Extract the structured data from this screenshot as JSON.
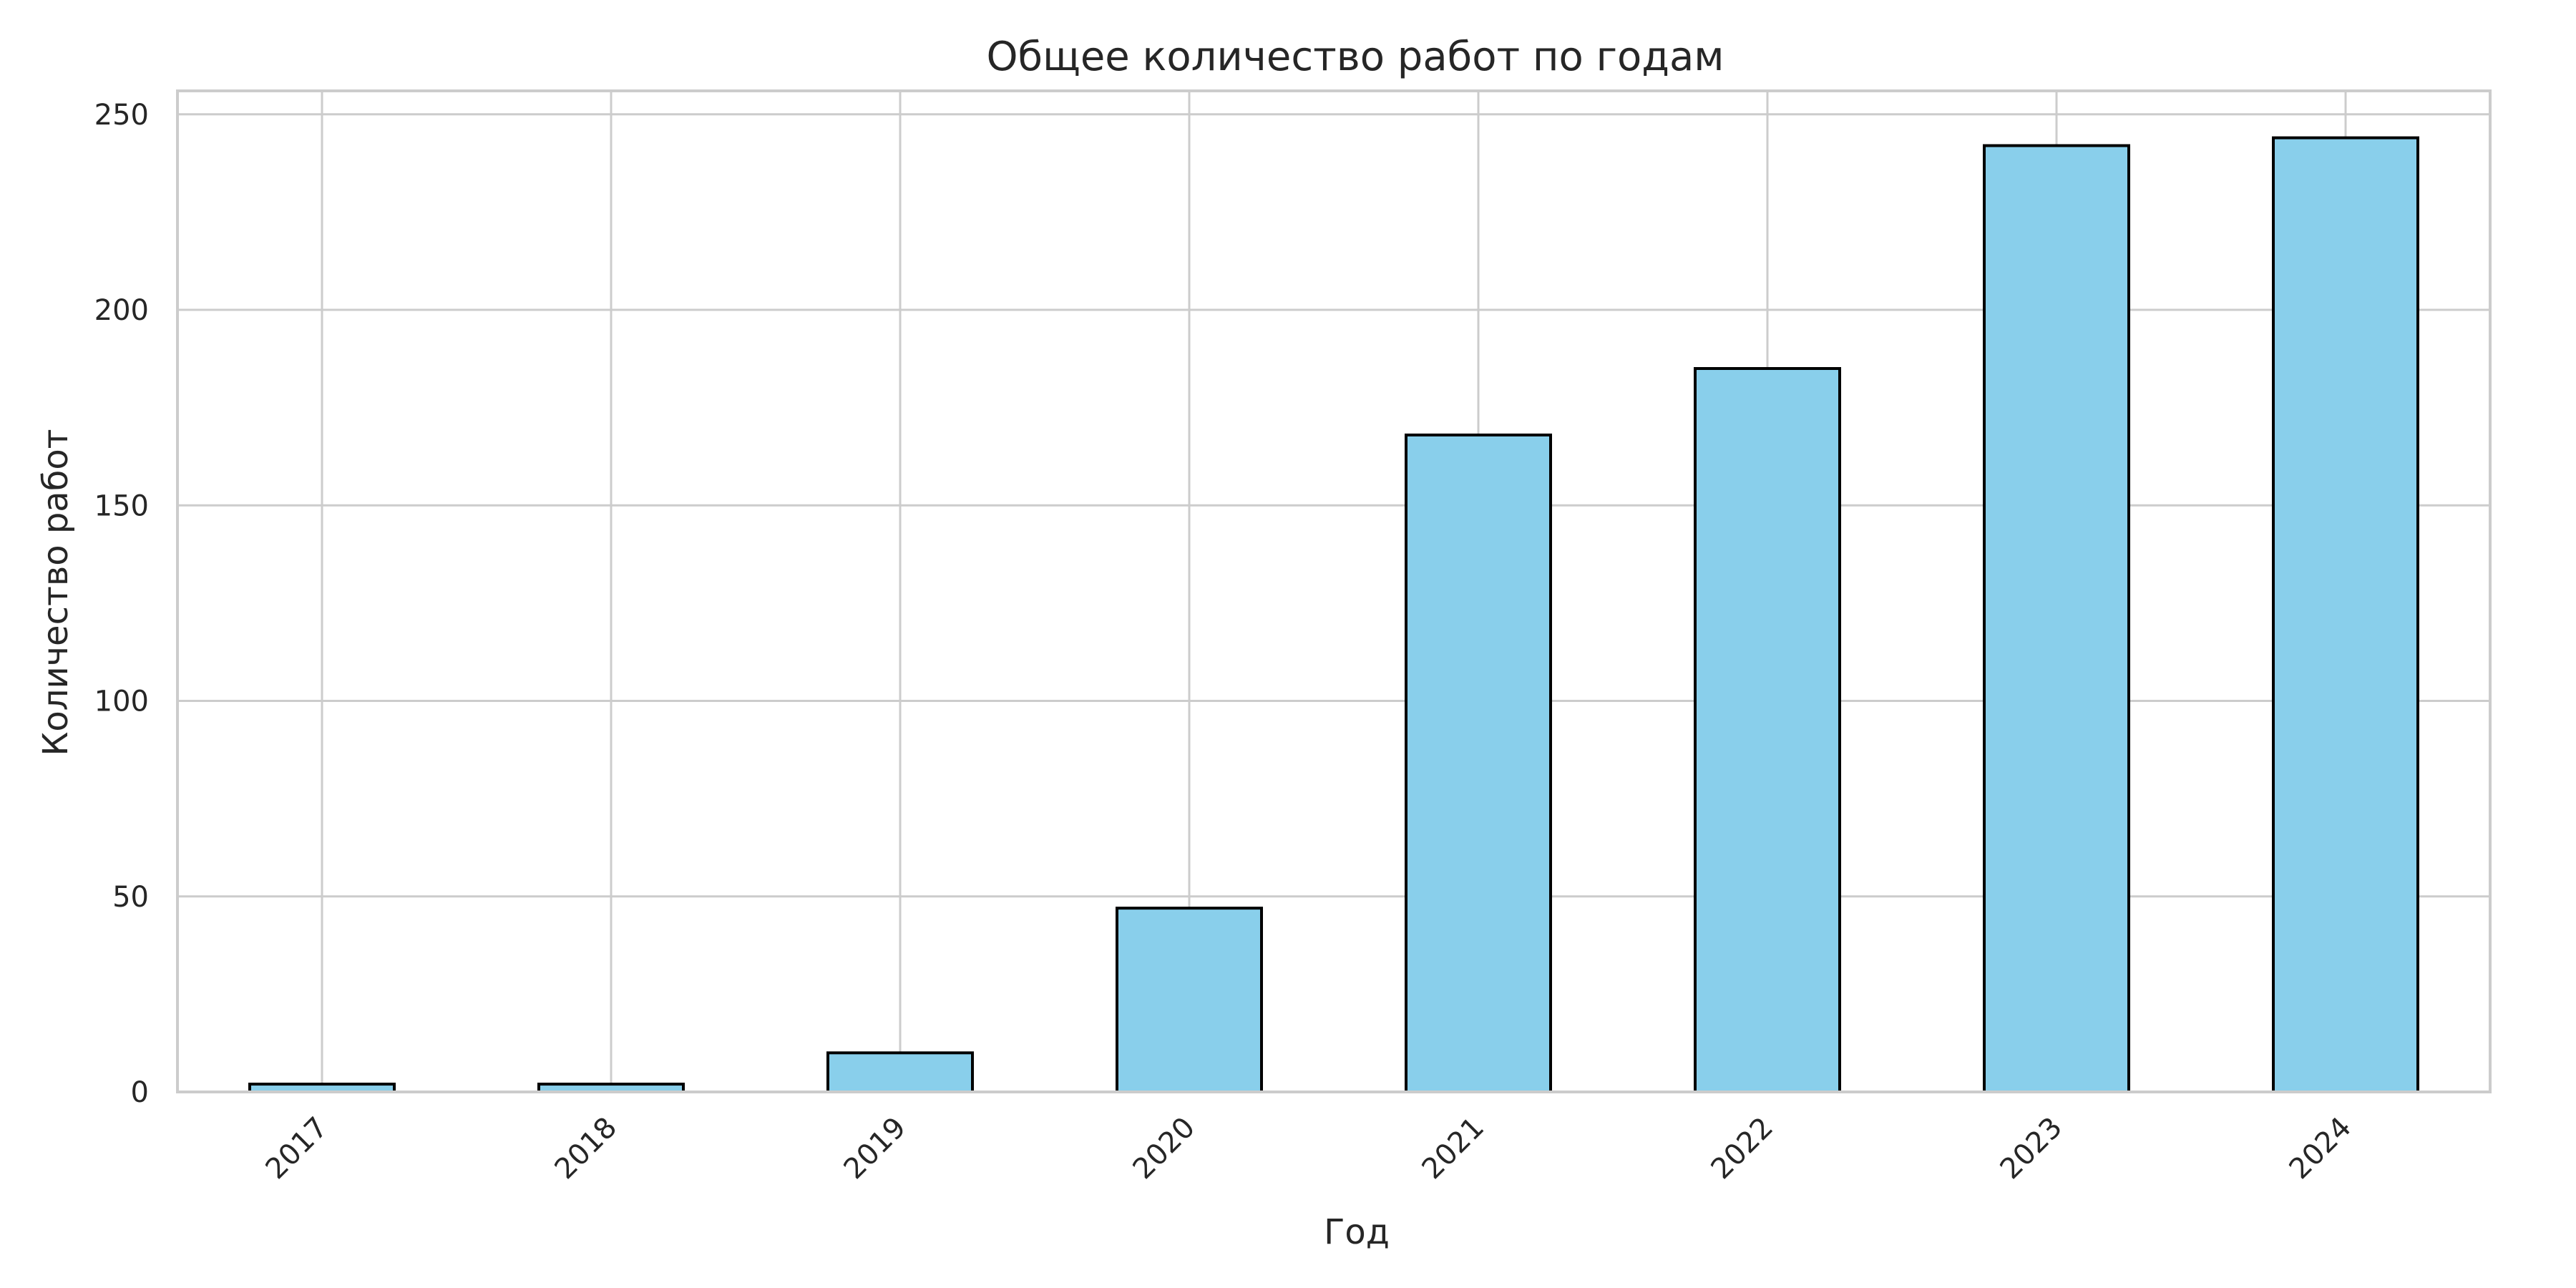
{
  "chart_data": {
    "type": "bar",
    "title": "Общее количество работ по годам",
    "xlabel": "Год",
    "ylabel": "Количество работ",
    "categories": [
      "2017",
      "2018",
      "2019",
      "2020",
      "2021",
      "2022",
      "2023",
      "2024"
    ],
    "values": [
      2,
      2,
      10,
      47,
      168,
      185,
      242,
      244
    ],
    "ylim": [
      0,
      256
    ],
    "yticks": [
      0,
      50,
      100,
      150,
      200,
      250
    ],
    "grid": true,
    "legend": "none",
    "bar_color": "#89CFEB",
    "bar_edge_color": "#000000",
    "grid_color": "#cccccc"
  }
}
